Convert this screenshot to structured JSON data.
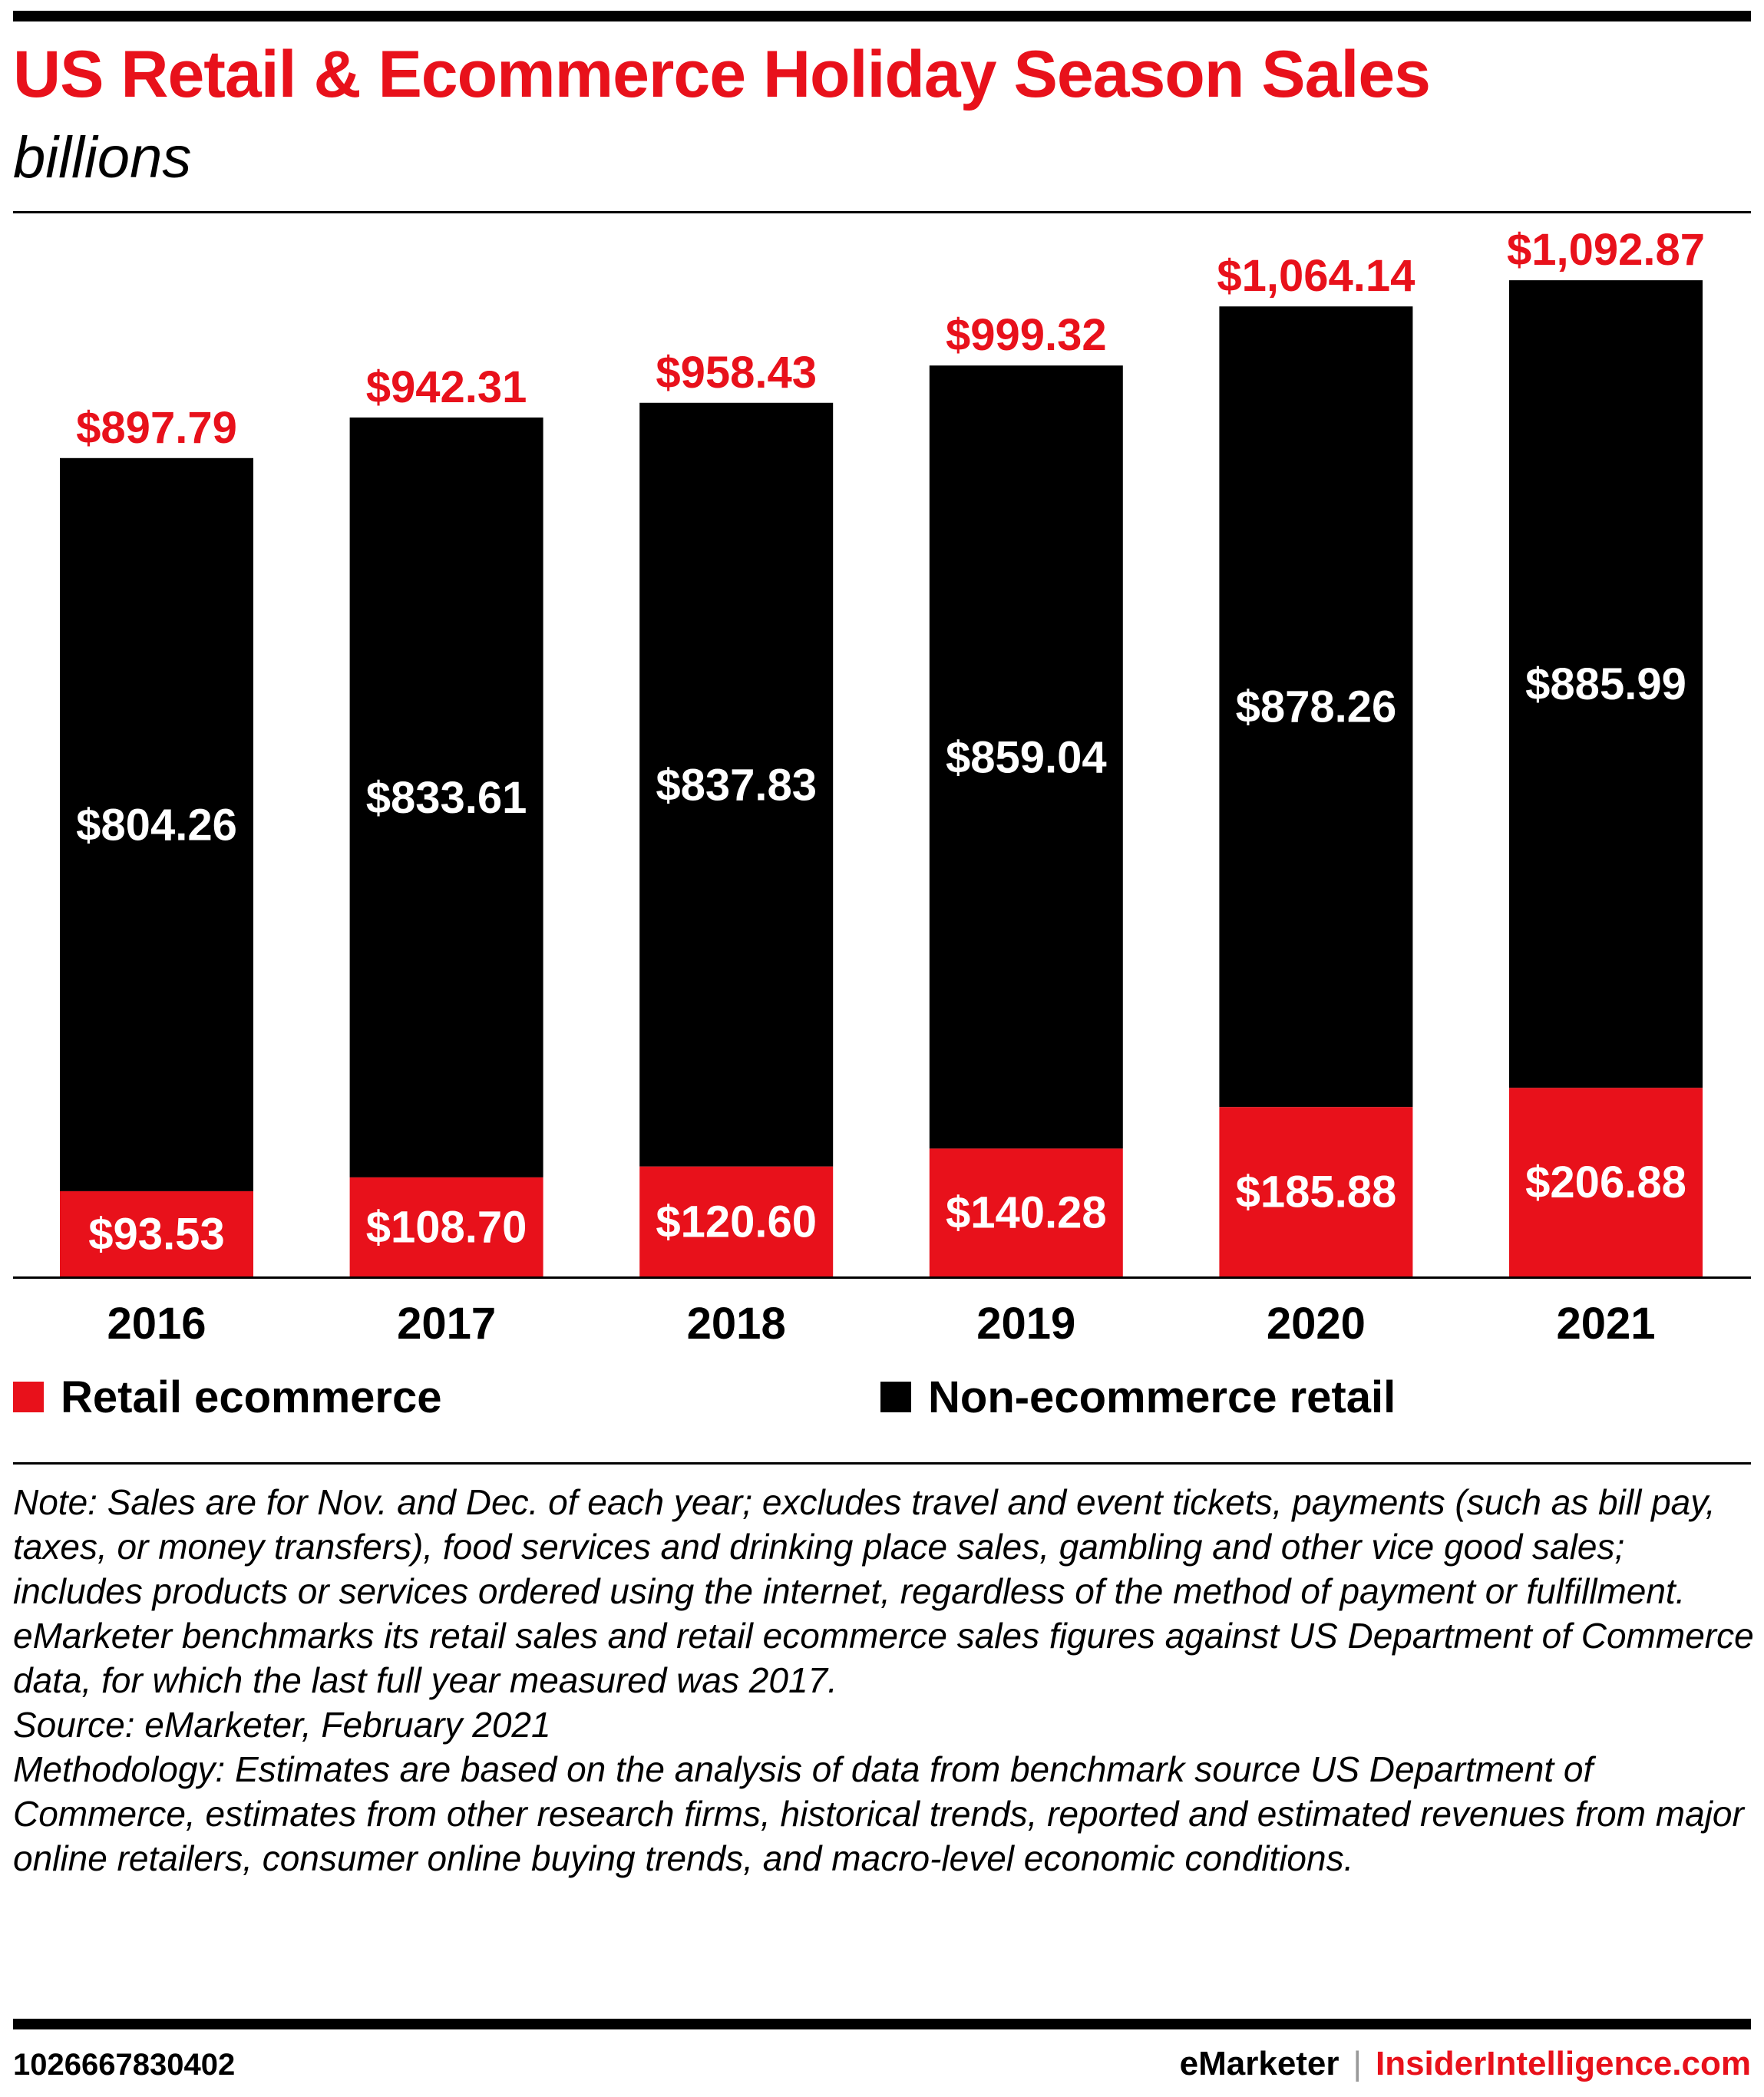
{
  "header": {
    "title": "US Retail & Ecommerce Holiday Season Sales",
    "subtitle": "billions"
  },
  "colors": {
    "accent": "#e8111b",
    "bar_dark": "#000000",
    "label_white": "#ffffff"
  },
  "chart_data": {
    "type": "bar",
    "stacked": true,
    "title": "US Retail & Ecommerce Holiday Season Sales",
    "subtitle": "billions",
    "xlabel": "",
    "ylabel": "",
    "ylim": [
      0,
      1100
    ],
    "grid": false,
    "legend_position": "bottom",
    "categories": [
      "2016",
      "2017",
      "2018",
      "2019",
      "2020",
      "2021"
    ],
    "series": [
      {
        "name": "Retail ecommerce",
        "color": "#e8111b",
        "values": [
          93.53,
          108.7,
          120.6,
          140.28,
          185.88,
          206.88
        ],
        "labels": [
          "$93.53",
          "$108.70",
          "$120.60",
          "$140.28",
          "$185.88",
          "$206.88"
        ]
      },
      {
        "name": "Non-ecommerce retail",
        "color": "#000000",
        "values": [
          804.26,
          833.61,
          837.83,
          859.04,
          878.26,
          885.99
        ],
        "labels": [
          "$804.26",
          "$833.61",
          "$837.83",
          "$859.04",
          "$878.26",
          "$885.99"
        ]
      }
    ],
    "totals": [
      897.79,
      942.31,
      958.43,
      999.32,
      1064.14,
      1092.87
    ],
    "total_labels": [
      "$897.79",
      "$942.31",
      "$958.43",
      "$999.32",
      "$1,064.14",
      "$1,092.87"
    ]
  },
  "legend": {
    "ecommerce_label": "Retail ecommerce",
    "non_ecommerce_label": "Non-ecommerce retail"
  },
  "notes": {
    "note": "Note: Sales are for Nov. and Dec. of each year; excludes travel and event tickets, payments (such as bill pay, taxes, or money transfers), food services and drinking place sales, gambling and other vice good sales; includes products or services ordered using the internet, regardless of the method of payment or fulfillment. eMarketer benchmarks its retail sales and retail ecommerce sales figures against US Department of Commerce data, for which the last full year measured was 2017.",
    "source": "Source: eMarketer, February 2021",
    "methodology": "Methodology: Estimates are based on the analysis of data from benchmark source US Department of Commerce, estimates from other research firms, historical trends, reported and estimated revenues from major online retailers, consumer online buying trends, and macro-level economic conditions."
  },
  "footer": {
    "chart_id": "1026667830402",
    "brand": "eMarketer",
    "separator": "|",
    "site": "InsiderIntelligence.com"
  }
}
